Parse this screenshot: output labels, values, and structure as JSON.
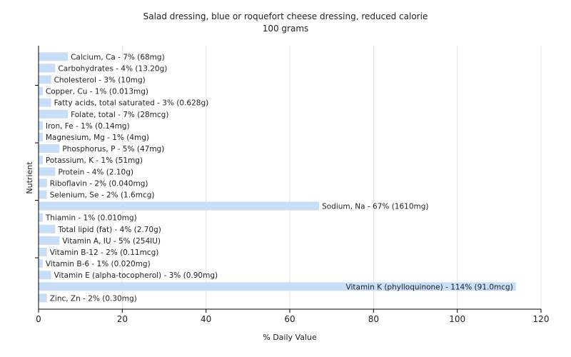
{
  "chart_data": {
    "type": "bar",
    "orientation": "horizontal",
    "title": "Salad dressing, blue or roquefort cheese dressing, reduced calorie",
    "subtitle": "100 grams",
    "xlabel": "% Daily Value",
    "ylabel": "Nutrient",
    "xlim": [
      0,
      120
    ],
    "xticks": [
      0,
      20,
      40,
      60,
      80,
      100,
      120
    ],
    "grid": true,
    "bar_color": "#c8ddf7",
    "categories": [
      "Calcium, Ca",
      "Carbohydrates",
      "Cholesterol",
      "Copper, Cu",
      "Fatty acids, total saturated",
      "Folate, total",
      "Iron, Fe",
      "Magnesium, Mg",
      "Phosphorus, P",
      "Potassium, K",
      "Protein",
      "Riboflavin",
      "Selenium, Se",
      "Sodium, Na",
      "Thiamin",
      "Total lipid (fat)",
      "Vitamin A, IU",
      "Vitamin B-12",
      "Vitamin B-6",
      "Vitamin E (alpha-tocopherol)",
      "Vitamin K (phylloquinone)",
      "Zinc, Zn"
    ],
    "values": [
      7,
      4,
      3,
      1,
      3,
      7,
      1,
      1,
      5,
      1,
      4,
      2,
      2,
      67,
      1,
      4,
      5,
      2,
      1,
      3,
      114,
      2
    ],
    "labels": [
      "Calcium, Ca - 7% (68mg)",
      "Carbohydrates - 4% (13.20g)",
      "Cholesterol - 3% (10mg)",
      "Copper, Cu - 1% (0.013mg)",
      "Fatty acids, total saturated - 3% (0.628g)",
      "Folate, total - 7% (28mcg)",
      "Iron, Fe - 1% (0.14mg)",
      "Magnesium, Mg - 1% (4mg)",
      "Phosphorus, P - 5% (47mg)",
      "Potassium, K - 1% (51mg)",
      "Protein - 4% (2.10g)",
      "Riboflavin - 2% (0.040mg)",
      "Selenium, Se - 2% (1.6mcg)",
      "Sodium, Na - 67% (1610mg)",
      "Thiamin - 1% (0.010mg)",
      "Total lipid (fat) - 4% (2.70g)",
      "Vitamin A, IU - 5% (254IU)",
      "Vitamin B-12 - 2% (0.11mcg)",
      "Vitamin B-6 - 1% (0.020mg)",
      "Vitamin E (alpha-tocopherol) - 3% (0.90mg)",
      "Vitamin K (phylloquinone) - 114% (91.0mcg)",
      "Zinc, Zn - 2% (0.30mg)"
    ]
  }
}
